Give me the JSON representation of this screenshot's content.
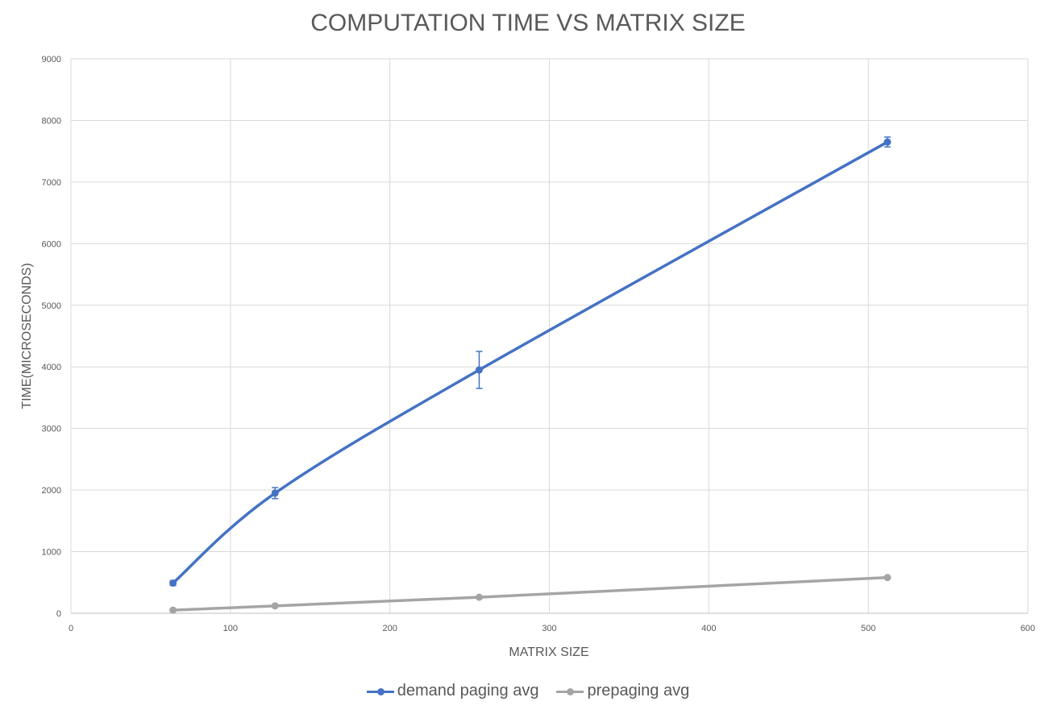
{
  "chart_data": {
    "type": "line",
    "title": "COMPUTATION TIME VS MATRIX SIZE",
    "xlabel": "MATRIX SIZE",
    "ylabel": "TIME(MICROSECONDS)",
    "xlim": [
      0,
      600
    ],
    "ylim": [
      0,
      9000
    ],
    "x_ticks": [
      "0",
      "100",
      "200",
      "300",
      "400",
      "500",
      "600"
    ],
    "y_ticks": [
      "0",
      "1000",
      "2000",
      "3000",
      "4000",
      "5000",
      "6000",
      "7000",
      "8000",
      "9000"
    ],
    "grid": true,
    "legend_position": "bottom",
    "series": [
      {
        "name": "demand paging avg",
        "color": "#4472C4",
        "smooth": true,
        "points": [
          {
            "x": 64,
            "y": 490,
            "err": 40
          },
          {
            "x": 128,
            "y": 1950,
            "err": 90
          },
          {
            "x": 256,
            "y": 3950,
            "err": 300
          },
          {
            "x": 512,
            "y": 7650,
            "err": 80
          }
        ]
      },
      {
        "name": "prepaging avg",
        "color": "#A5A5A5",
        "smooth": false,
        "points": [
          {
            "x": 64,
            "y": 50,
            "err": 0
          },
          {
            "x": 128,
            "y": 120,
            "err": 0
          },
          {
            "x": 256,
            "y": 260,
            "err": 0
          },
          {
            "x": 512,
            "y": 580,
            "err": 0
          }
        ]
      }
    ]
  }
}
